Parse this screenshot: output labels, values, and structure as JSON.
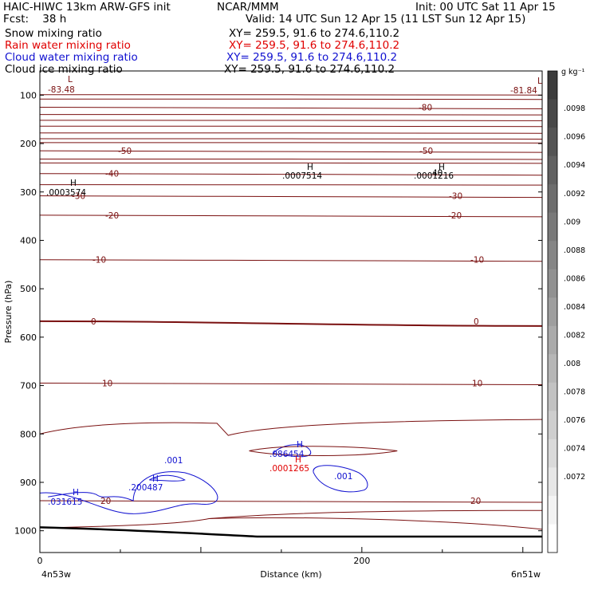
{
  "header": {
    "line1_left": "HAIC-HIWC 13km ARW-GFS init",
    "line1_mid": "NCAR/MMM",
    "line1_right": "Init: 00 UTC Sat 11 Apr 15",
    "line2_left": "Fcst:    38 h",
    "line2_right": "Valid: 14 UTC Sun 12 Apr 15 (11 LST Sun 12 Apr 15)",
    "fields": [
      {
        "name": "Snow mixing ratio",
        "xy": "XY= 259.5, 91.6 to 274.6,110.2",
        "color": "#000000"
      },
      {
        "name": "Rain water mixing ratio",
        "xy": "XY= 259.5, 91.6 to 274.6,110.2",
        "color": "#e00000"
      },
      {
        "name": "Cloud water mixing ratio",
        "xy": "XY= 259.5, 91.6 to 274.6,110.2",
        "color": "#1010d0"
      },
      {
        "name": "Cloud ice mixing ratio",
        "xy": "XY= 259.5, 91.6 to 274.6,110.2",
        "color": "#000000"
      }
    ]
  },
  "chart_data": {
    "type": "contour",
    "xlabel": "Distance (km)",
    "ylabel": "Pressure (hPa)",
    "x_ticks": [
      0,
      200
    ],
    "x_range": [
      0,
      312
    ],
    "y_ticks": [
      100,
      200,
      300,
      400,
      500,
      600,
      700,
      800,
      900,
      1000
    ],
    "y_range": [
      50,
      1045
    ],
    "x_end_labels": [
      "4n53w",
      "6n51w"
    ],
    "temperature_contours": [
      {
        "value": -80,
        "p": 125,
        "label": "-80"
      },
      {
        "value": -50,
        "p": 215,
        "label": "-50"
      },
      {
        "value": -40,
        "p": 262,
        "label": "-40"
      },
      {
        "value": -30,
        "p": 308,
        "label": "-30"
      },
      {
        "value": -20,
        "p": 348,
        "label": "-20"
      },
      {
        "value": -10,
        "p": 440,
        "label": "-10"
      },
      {
        "value": 0,
        "p": 567,
        "label": "0"
      },
      {
        "value": 10,
        "p": 695,
        "label": "10"
      },
      {
        "value": 20,
        "p": 938,
        "label": "20"
      }
    ],
    "extrema": [
      {
        "type": "L",
        "value": "-83.48",
        "color": "#7a1010"
      },
      {
        "type": "L",
        "value": "-81.84",
        "color": "#7a1010"
      },
      {
        "type": "H",
        "value": ".0003574",
        "color": "#000000"
      },
      {
        "type": "H",
        "value": ".0007514",
        "color": "#000000"
      },
      {
        "type": "H",
        "value": ".0001216",
        "color": "#000000"
      },
      {
        "type": "H",
        "value": ".086454",
        "color": "#1010d0"
      },
      {
        "type": "H",
        "value": ".0001265",
        "color": "#e00000"
      },
      {
        "type": "H",
        "value": ".200487",
        "color": "#1010d0"
      },
      {
        "type": "H",
        "value": ".031615",
        "color": "#1010d0"
      }
    ],
    "cloud_water_labels": [
      ".001",
      ".001"
    ],
    "extra_contour_labels": [
      "40"
    ],
    "colorbar": {
      "unit": "g kg⁻¹",
      "ticks": [
        ".0098",
        ".0096",
        ".0094",
        ".0092",
        ".009",
        ".0088",
        ".0086",
        ".0084",
        ".0082",
        ".008",
        ".0078",
        ".0076",
        ".0074",
        ".0072"
      ]
    },
    "colors": {
      "temperature": "#7a1010",
      "rain": "#e00000",
      "cloud_water": "#1010d0",
      "ground": "#000000"
    }
  }
}
